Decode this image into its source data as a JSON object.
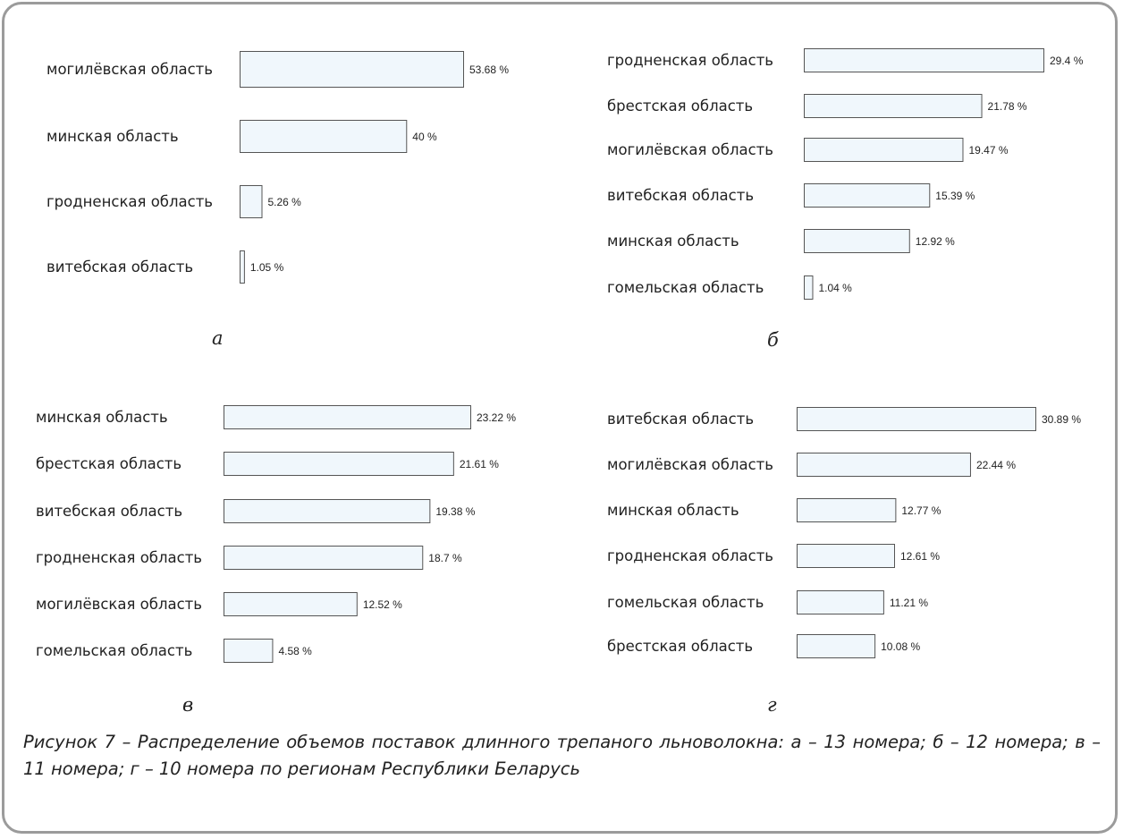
{
  "chart_data": [
    {
      "type": "bar",
      "orientation": "horizontal",
      "panel": "а",
      "categories": [
        "могилёвская область",
        "минская область",
        "гродненская область",
        "витебская область"
      ],
      "values": [
        53.68,
        40,
        5.26,
        1.05
      ],
      "value_labels": [
        "53.68 %",
        "40 %",
        "5.26 %",
        "1.05 %"
      ]
    },
    {
      "type": "bar",
      "orientation": "horizontal",
      "panel": "б",
      "categories": [
        "гродненская область",
        "брестская область",
        "могилёвская область",
        "витебская область",
        "минская область",
        "гомельская область"
      ],
      "values": [
        29.4,
        21.78,
        19.47,
        15.39,
        12.92,
        1.04
      ],
      "value_labels": [
        "29.4 %",
        "21.78 %",
        "19.47 %",
        "15.39 %",
        "12.92 %",
        "1.04 %"
      ]
    },
    {
      "type": "bar",
      "orientation": "horizontal",
      "panel": "в",
      "categories": [
        "минская область",
        "брестская область",
        "витебская область",
        "гродненская область",
        "могилёвская область",
        "гомельская область"
      ],
      "values": [
        23.22,
        21.61,
        19.38,
        18.7,
        12.52,
        4.58
      ],
      "value_labels": [
        "23.22 %",
        "21.61 %",
        "19.38 %",
        "18.7 %",
        "12.52 %",
        "4.58 %"
      ]
    },
    {
      "type": "bar",
      "orientation": "horizontal",
      "panel": "г",
      "categories": [
        "витебская область",
        "могилёвская область",
        "минская область",
        "гродненская область",
        "гомельская область",
        "брестская область"
      ],
      "values": [
        30.89,
        22.44,
        12.77,
        12.61,
        11.21,
        10.08
      ],
      "value_labels": [
        "30.89 %",
        "22.44 %",
        "12.77 %",
        "12.61 %",
        "11.21 %",
        "10.08 %"
      ]
    }
  ],
  "caption": "Рисунок 7 – Распределение объемов поставок длинного трепаного льноволокна: а – 13 номера; б – 12 номера; в – 11 номера; г – 10 номера по регионам Республики Беларусь",
  "colors": {
    "bar_fill": "#f0f7fc",
    "bar_stroke": "#555555",
    "frame": "#9b9b9b"
  }
}
